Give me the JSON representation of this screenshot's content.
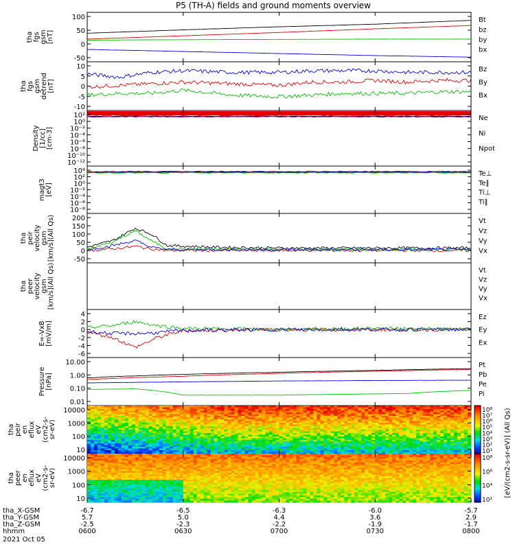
{
  "title": "P5 (TH-A) fields and ground moments overview",
  "colors": {
    "black": "#000000",
    "red": "#e00000",
    "green": "#00d000",
    "blue": "#0000e0",
    "purple": "#7a00a0"
  },
  "panels": [
    {
      "id": "fgs_gsm",
      "ylabel_lines": [
        "tha",
        "fgs",
        "gsm",
        "[nT]"
      ],
      "yticks": [
        "100",
        "50",
        "0",
        "-50"
      ],
      "legend": [
        {
          "text": "Bt",
          "color": "#000000"
        },
        {
          "text": "bz",
          "color": "#e00000"
        },
        {
          "text": "by",
          "color": "#00d000"
        },
        {
          "text": "bx",
          "color": "#0000e0"
        }
      ]
    },
    {
      "id": "fgs_dsl",
      "ylabel_lines": [
        "tha",
        "fgs",
        "gsm",
        "detrend",
        "[nT]"
      ],
      "yticks": [
        "10",
        "5",
        "0",
        "-5",
        "-10"
      ],
      "legend": [
        {
          "text": "Bz",
          "color": "#e00000"
        },
        {
          "text": "By",
          "color": "#00d000"
        },
        {
          "text": "Bx",
          "color": "#0000e0"
        }
      ]
    },
    {
      "id": "density",
      "ylabel_lines": [
        "Density",
        "[1/cc]",
        "[cm-3]"
      ],
      "yticks": [
        "10²",
        "10⁰",
        "10⁻²",
        "10⁻⁴",
        "10⁻⁶",
        "10⁻⁸",
        "10⁻¹⁰",
        "10⁻¹²"
      ],
      "legend": [
        {
          "text": "Ne",
          "color": "#e00000"
        },
        {
          "text": "Ni",
          "color": "#000000"
        },
        {
          "text": "Npot",
          "color": "#0000e0"
        }
      ]
    },
    {
      "id": "temp",
      "ylabel_lines": [
        "magt3",
        "[eV]"
      ],
      "yticks": [
        "10⁴",
        "10²",
        "10⁰",
        "10⁻²",
        "10⁻⁴",
        "10⁻⁶",
        "10⁻⁸"
      ],
      "legend": [
        {
          "text": "Te⊥",
          "color": "#e00000"
        },
        {
          "text": "Te∥",
          "color": "#000000"
        },
        {
          "text": "Ti⊥",
          "color": "#0000e0"
        },
        {
          "text": "Ti∥",
          "color": "#00d000"
        }
      ]
    },
    {
      "id": "peir_vel",
      "ylabel_lines": [
        "tha",
        "peir",
        "velocity",
        "gsm",
        "[km/s](All Qs)"
      ],
      "yticks": [
        "200",
        "150",
        "100",
        "50",
        "0",
        "-50"
      ],
      "legend": [
        {
          "text": "Vt",
          "color": "#000000"
        },
        {
          "text": "Vz",
          "color": "#e00000"
        },
        {
          "text": "Vy",
          "color": "#00d000"
        },
        {
          "text": "Vx",
          "color": "#0000e0"
        }
      ]
    },
    {
      "id": "peer_vel",
      "ylabel_lines": [
        "tha",
        "peer",
        "velocity",
        "gsm",
        "[km/s](All Qs)"
      ],
      "yticks": [],
      "legend": [
        {
          "text": "Vt",
          "color": "#000000"
        },
        {
          "text": "Vz",
          "color": "#e00000"
        },
        {
          "text": "Vy",
          "color": "#00d000"
        },
        {
          "text": "Vx",
          "color": "#0000e0"
        }
      ]
    },
    {
      "id": "efield",
      "ylabel_lines": [
        "E=-VxB",
        "[mV/m]"
      ],
      "yticks": [
        "4",
        "2",
        "0",
        "-2",
        "-4",
        "-6"
      ],
      "legend": [
        {
          "text": "Ez",
          "color": "#e00000"
        },
        {
          "text": "Ey",
          "color": "#00d000"
        },
        {
          "text": "Ex",
          "color": "#0000e0"
        }
      ]
    },
    {
      "id": "pressure",
      "ylabel_lines": [
        "Pressure",
        "[nPa]"
      ],
      "yticks": [
        "10.00",
        "1.00",
        "0.10",
        "0.01"
      ],
      "legend": [
        {
          "text": "Pt",
          "color": "#000000"
        },
        {
          "text": "Pb",
          "color": "#e00000"
        },
        {
          "text": "Pe",
          "color": "#00d000"
        },
        {
          "text": "Pi",
          "color": "#0000e0"
        }
      ]
    },
    {
      "id": "peir_spec",
      "ylabel_lines": [
        "tha",
        "peir",
        "en",
        "eflux",
        "eV",
        "(cm2-s-",
        "sr-eV)"
      ],
      "yticks": [
        "10000",
        "1000",
        "100",
        "10"
      ],
      "legend": []
    },
    {
      "id": "peer_spec",
      "ylabel_lines": [
        "tha",
        "peer",
        "en",
        "eflux",
        "eV",
        "(cm2-s-",
        "sr-eV)"
      ],
      "yticks": [
        "10000",
        "1000",
        "100",
        "10"
      ],
      "legend": []
    }
  ],
  "colorbar": {
    "label": "[eV/(cm2-s-sr-eV)] (All Qs)",
    "ticks": [
      "10⁸",
      "10⁷",
      "10⁶",
      "10⁵",
      "10⁴",
      "10³",
      "10²",
      "10¹"
    ],
    "ticks_lower": [
      "10⁸",
      "10⁶",
      "10⁴",
      "10²"
    ]
  },
  "xaxis": {
    "row_labels": [
      "tha_X-GSM",
      "tha_Y-GSM",
      "tha_Z-GSM",
      "hhmm",
      "2021 Oct 05"
    ],
    "columns": [
      {
        "x": "-6.7",
        "y": "5.7",
        "z": "-2.5",
        "t": "0600"
      },
      {
        "x": "-6.5",
        "y": "5.0",
        "z": "-2.3",
        "t": "0630"
      },
      {
        "x": "-6.3",
        "y": "4.4",
        "z": "-2.2",
        "t": "0700"
      },
      {
        "x": "-6.0",
        "y": "3.6",
        "z": "-1.9",
        "t": "0730"
      },
      {
        "x": "-5.7",
        "y": "2.9",
        "z": "-1.7",
        "t": "0800"
      }
    ]
  },
  "chart_data": {
    "type": "line",
    "title": "P5 (TH-A) fields and ground moments overview",
    "time_range": [
      "2021-10-05 06:00",
      "2021-10-05 08:00"
    ],
    "x_ticks": [
      "0600",
      "0630",
      "0700",
      "0730",
      "0800"
    ],
    "panels": [
      {
        "name": "fgs gsm",
        "ylim": [
          -60,
          100
        ],
        "series": [
          {
            "name": "Bt",
            "points": [
              [
                0,
                35
              ],
              [
                30,
                48
              ],
              [
                60,
                60
              ],
              [
                90,
                70
              ],
              [
                120,
                85
              ]
            ]
          },
          {
            "name": "bz",
            "points": [
              [
                0,
                12
              ],
              [
                30,
                25
              ],
              [
                60,
                38
              ],
              [
                90,
                52
              ],
              [
                120,
                65
              ]
            ]
          },
          {
            "name": "by",
            "points": [
              [
                0,
                8
              ],
              [
                30,
                10
              ],
              [
                60,
                11
              ],
              [
                90,
                12
              ],
              [
                120,
                12
              ]
            ]
          },
          {
            "name": "bx",
            "points": [
              [
                0,
                -28
              ],
              [
                30,
                -36
              ],
              [
                60,
                -44
              ],
              [
                90,
                -52
              ],
              [
                120,
                -58
              ]
            ]
          }
        ]
      },
      {
        "name": "fgs detrend",
        "ylim": [
          -15,
          10
        ],
        "series": [
          {
            "name": "Bz",
            "points": [
              [
                0,
                -3
              ],
              [
                10,
                -2
              ],
              [
                20,
                -1
              ],
              [
                30,
                0
              ],
              [
                45,
                -1
              ],
              [
                60,
                -2
              ],
              [
                70,
                0
              ],
              [
                80,
                0
              ],
              [
                90,
                1
              ],
              [
                100,
                0
              ],
              [
                110,
                1
              ],
              [
                120,
                1
              ]
            ]
          },
          {
            "name": "By",
            "points": [
              [
                0,
                -8
              ],
              [
                10,
                -7
              ],
              [
                20,
                -7
              ],
              [
                30,
                -5
              ],
              [
                45,
                -8
              ],
              [
                60,
                -9
              ],
              [
                70,
                -8
              ],
              [
                80,
                -7
              ],
              [
                90,
                -7
              ],
              [
                100,
                -7
              ],
              [
                110,
                -6
              ],
              [
                120,
                -6
              ]
            ]
          },
          {
            "name": "Bx",
            "points": [
              [
                0,
                5
              ],
              [
                10,
                3
              ],
              [
                20,
                6
              ],
              [
                30,
                7
              ],
              [
                45,
                6
              ],
              [
                60,
                6
              ],
              [
                70,
                7
              ],
              [
                80,
                7
              ],
              [
                90,
                7
              ],
              [
                100,
                6
              ],
              [
                110,
                6
              ],
              [
                120,
                6
              ]
            ]
          }
        ]
      },
      {
        "name": "peir velocity",
        "ylim": [
          -50,
          200
        ],
        "series": [
          {
            "name": "Vt",
            "points": [
              [
                0,
                20
              ],
              [
                8,
                60
              ],
              [
                15,
                135
              ],
              [
                20,
                100
              ],
              [
                25,
                30
              ],
              [
                40,
                20
              ],
              [
                60,
                15
              ],
              [
                90,
                15
              ],
              [
                120,
                15
              ]
            ]
          },
          {
            "name": "Vz",
            "points": [
              [
                0,
                0
              ],
              [
                8,
                10
              ],
              [
                15,
                25
              ],
              [
                20,
                10
              ],
              [
                25,
                0
              ],
              [
                60,
                0
              ],
              [
                120,
                0
              ]
            ]
          },
          {
            "name": "Vy",
            "points": [
              [
                0,
                10
              ],
              [
                8,
                50
              ],
              [
                15,
                120
              ],
              [
                20,
                60
              ],
              [
                25,
                10
              ],
              [
                60,
                5
              ],
              [
                120,
                5
              ]
            ]
          },
          {
            "name": "Vx",
            "points": [
              [
                0,
                5
              ],
              [
                8,
                30
              ],
              [
                15,
                60
              ],
              [
                20,
                20
              ],
              [
                25,
                5
              ],
              [
                60,
                5
              ],
              [
                120,
                5
              ]
            ]
          }
        ]
      },
      {
        "name": "E=-VxB",
        "ylim": [
          -6,
          4
        ],
        "series": [
          {
            "name": "Ez",
            "points": [
              [
                0,
                -0.5
              ],
              [
                8,
                -2
              ],
              [
                15,
                -4.5
              ],
              [
                22,
                -2
              ],
              [
                30,
                -0.3
              ],
              [
                60,
                0
              ],
              [
                90,
                0
              ],
              [
                120,
                0
              ]
            ]
          },
          {
            "name": "Ey",
            "points": [
              [
                0,
                0.5
              ],
              [
                8,
                1
              ],
              [
                15,
                2
              ],
              [
                22,
                1
              ],
              [
                30,
                0.3
              ],
              [
                60,
                0
              ],
              [
                90,
                0.3
              ],
              [
                120,
                0
              ]
            ]
          },
          {
            "name": "Ex",
            "points": [
              [
                0,
                -0.5
              ],
              [
                8,
                -1
              ],
              [
                15,
                -1
              ],
              [
                22,
                -0.8
              ],
              [
                30,
                -0.2
              ],
              [
                60,
                0
              ],
              [
                120,
                0
              ]
            ]
          }
        ]
      },
      {
        "name": "Pressure",
        "ylim": [
          0.01,
          10
        ],
        "scale": "log",
        "series": [
          {
            "name": "Pt",
            "points": [
              [
                0,
                0.6
              ],
              [
                30,
                1.1
              ],
              [
                60,
                1.6
              ],
              [
                90,
                2.2
              ],
              [
                120,
                3.0
              ]
            ]
          },
          {
            "name": "Pb",
            "points": [
              [
                0,
                0.45
              ],
              [
                30,
                0.8
              ],
              [
                60,
                1.3
              ],
              [
                90,
                1.9
              ],
              [
                120,
                2.6
              ]
            ]
          },
          {
            "name": "Pe",
            "points": [
              [
                0,
                0.08
              ],
              [
                15,
                0.09
              ],
              [
                30,
                0.03
              ],
              [
                60,
                0.03
              ],
              [
                80,
                0.035
              ],
              [
                100,
                0.04
              ],
              [
                120,
                0.07
              ]
            ]
          },
          {
            "name": "Pi",
            "points": [
              [
                0,
                0.25
              ],
              [
                30,
                0.3
              ],
              [
                60,
                0.35
              ],
              [
                90,
                0.38
              ],
              [
                120,
                0.4
              ]
            ]
          }
        ]
      }
    ]
  }
}
